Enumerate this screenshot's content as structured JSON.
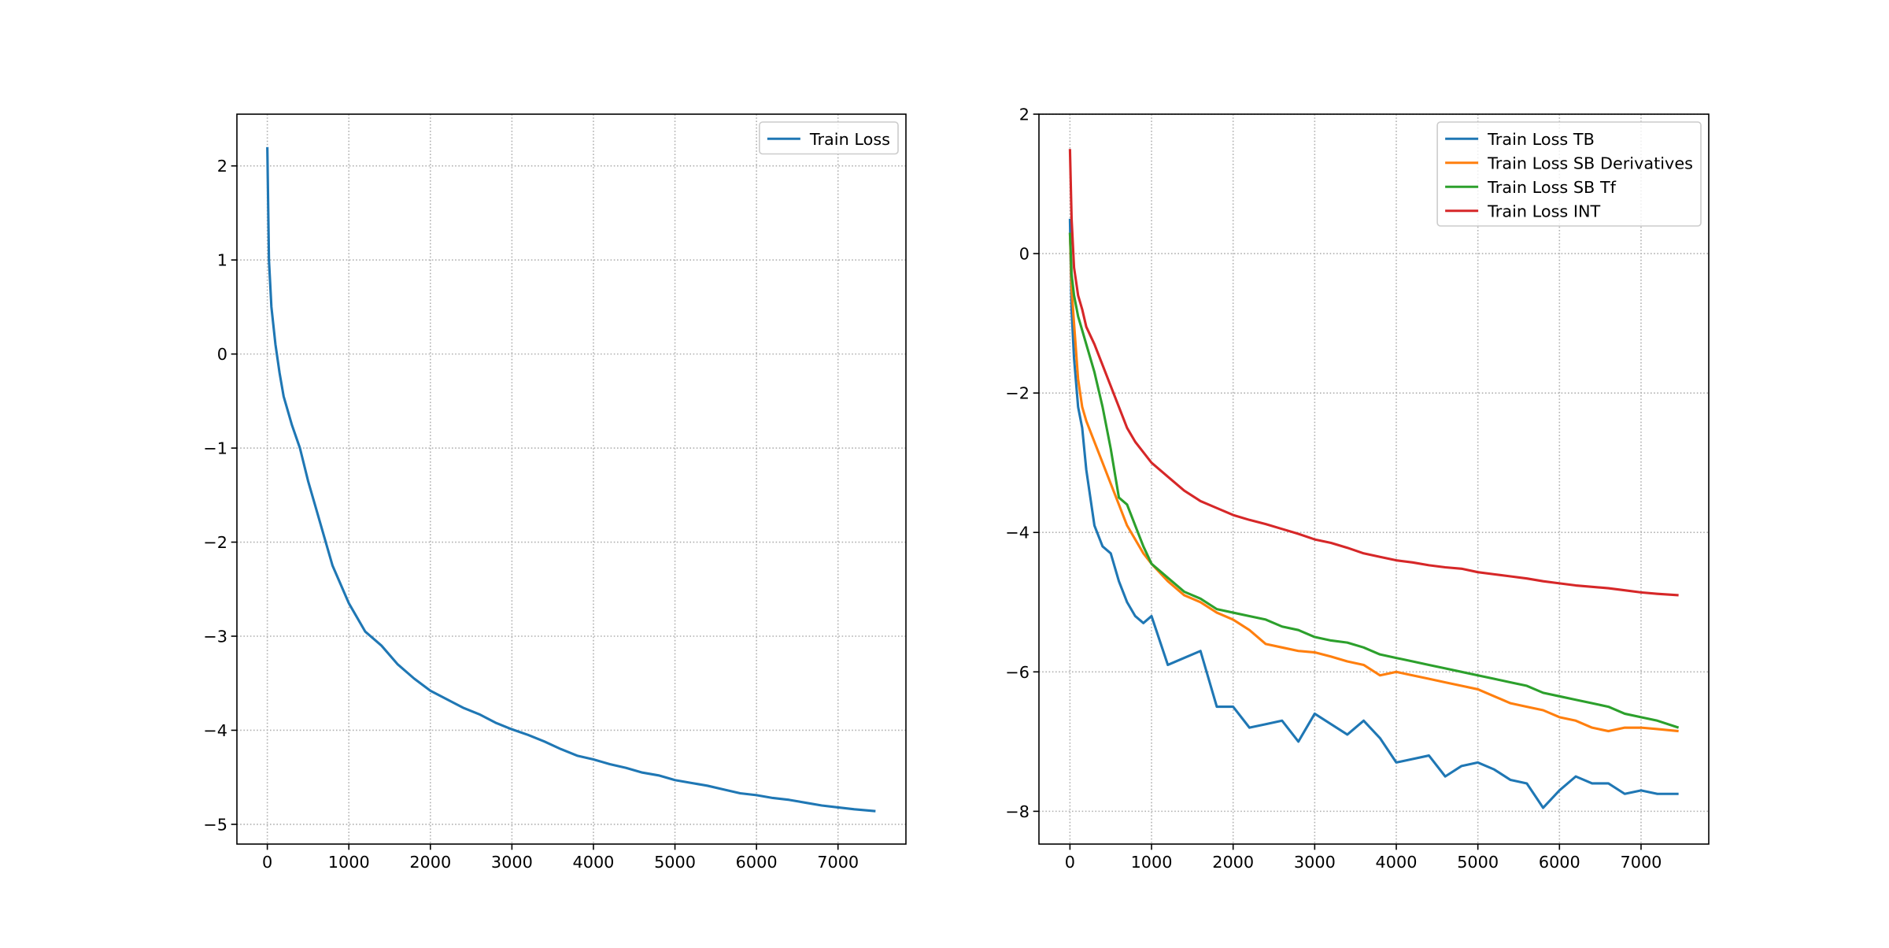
{
  "chart_data": [
    {
      "type": "line",
      "x": [
        0,
        20,
        50,
        100,
        150,
        200,
        300,
        400,
        500,
        600,
        700,
        800,
        900,
        1000,
        1200,
        1400,
        1600,
        1800,
        2000,
        2200,
        2400,
        2600,
        2800,
        3000,
        3200,
        3400,
        3600,
        3800,
        4000,
        4200,
        4400,
        4600,
        4800,
        5000,
        5200,
        5400,
        5600,
        5800,
        6000,
        6200,
        6400,
        6600,
        6800,
        7000,
        7200,
        7460
      ],
      "series": [
        {
          "name": "Train Loss",
          "color": "#1f77b4",
          "values": [
            2.2,
            1.0,
            0.5,
            0.1,
            -0.2,
            -0.45,
            -0.75,
            -1.0,
            -1.35,
            -1.65,
            -1.95,
            -2.25,
            -2.45,
            -2.65,
            -2.95,
            -3.1,
            -3.3,
            -3.45,
            -3.58,
            -3.67,
            -3.76,
            -3.83,
            -3.92,
            -3.99,
            -4.05,
            -4.12,
            -4.2,
            -4.27,
            -4.31,
            -4.36,
            -4.4,
            -4.45,
            -4.48,
            -4.53,
            -4.56,
            -4.59,
            -4.63,
            -4.67,
            -4.69,
            -4.72,
            -4.74,
            -4.77,
            -4.8,
            -4.82,
            -4.84,
            -4.86
          ]
        }
      ],
      "xlim": [
        -373,
        7833
      ],
      "ylim": [
        -5.21,
        2.55
      ],
      "xticks": [
        0,
        1000,
        2000,
        3000,
        4000,
        5000,
        6000,
        7000
      ],
      "yticks": [
        {
          "value": -5,
          "label": "−5"
        },
        {
          "value": -4,
          "label": "−4"
        },
        {
          "value": -3,
          "label": "−3"
        },
        {
          "value": -2,
          "label": "−2"
        },
        {
          "value": -1,
          "label": "−1"
        },
        0,
        1,
        2
      ],
      "grid": true,
      "legend": "upper right"
    },
    {
      "type": "line",
      "x": [
        0,
        20,
        50,
        100,
        150,
        200,
        300,
        400,
        500,
        600,
        700,
        800,
        900,
        1000,
        1200,
        1400,
        1600,
        1800,
        2000,
        2200,
        2400,
        2600,
        2800,
        3000,
        3200,
        3400,
        3600,
        3800,
        4000,
        4200,
        4400,
        4600,
        4800,
        5000,
        5200,
        5400,
        5600,
        5800,
        6000,
        6200,
        6400,
        6600,
        6800,
        7000,
        7200,
        7460
      ],
      "series": [
        {
          "name": "Train Loss TB",
          "color": "#1f77b4",
          "values": [
            0.5,
            -0.8,
            -1.5,
            -2.2,
            -2.5,
            -3.1,
            -3.9,
            -4.2,
            -4.3,
            -4.7,
            -5.0,
            -5.2,
            -5.3,
            -5.2,
            -5.9,
            -5.8,
            -5.7,
            -6.5,
            -6.5,
            -6.8,
            -6.75,
            -6.7,
            -7.0,
            -6.6,
            -6.75,
            -6.9,
            -6.7,
            -6.95,
            -7.3,
            -7.25,
            -7.2,
            -7.5,
            -7.35,
            -7.3,
            -7.4,
            -7.55,
            -7.6,
            -7.95,
            -7.7,
            -7.5,
            -7.6,
            -7.6,
            -7.75,
            -7.7,
            -7.75,
            -7.75
          ]
        },
        {
          "name": "Train Loss SB Derivatives",
          "color": "#ff7f0e",
          "values": [
            0.3,
            -0.5,
            -1.0,
            -1.8,
            -2.2,
            -2.4,
            -2.7,
            -3.0,
            -3.3,
            -3.6,
            -3.9,
            -4.1,
            -4.3,
            -4.45,
            -4.7,
            -4.9,
            -5.0,
            -5.15,
            -5.25,
            -5.4,
            -5.6,
            -5.65,
            -5.7,
            -5.72,
            -5.78,
            -5.85,
            -5.9,
            -6.05,
            -6.0,
            -6.05,
            -6.1,
            -6.15,
            -6.2,
            -6.25,
            -6.35,
            -6.45,
            -6.5,
            -6.55,
            -6.65,
            -6.7,
            -6.8,
            -6.85,
            -6.8,
            -6.8,
            -6.82,
            -6.85
          ]
        },
        {
          "name": "Train Loss SB Tf",
          "color": "#2ca02c",
          "values": [
            0.3,
            -0.3,
            -0.6,
            -0.9,
            -1.1,
            -1.3,
            -1.7,
            -2.2,
            -2.8,
            -3.5,
            -3.6,
            -3.9,
            -4.2,
            -4.45,
            -4.65,
            -4.85,
            -4.95,
            -5.1,
            -5.15,
            -5.2,
            -5.25,
            -5.35,
            -5.4,
            -5.5,
            -5.55,
            -5.58,
            -5.65,
            -5.75,
            -5.8,
            -5.85,
            -5.9,
            -5.95,
            -6.0,
            -6.05,
            -6.1,
            -6.15,
            -6.2,
            -6.3,
            -6.35,
            -6.4,
            -6.45,
            -6.5,
            -6.6,
            -6.65,
            -6.7,
            -6.8
          ]
        },
        {
          "name": "Train Loss INT",
          "color": "#d62728",
          "values": [
            1.5,
            0.5,
            -0.2,
            -0.6,
            -0.8,
            -1.05,
            -1.3,
            -1.6,
            -1.9,
            -2.2,
            -2.5,
            -2.7,
            -2.85,
            -3.0,
            -3.2,
            -3.4,
            -3.55,
            -3.65,
            -3.75,
            -3.82,
            -3.88,
            -3.95,
            -4.02,
            -4.1,
            -4.15,
            -4.22,
            -4.3,
            -4.35,
            -4.4,
            -4.43,
            -4.47,
            -4.5,
            -4.52,
            -4.57,
            -4.6,
            -4.63,
            -4.66,
            -4.7,
            -4.73,
            -4.76,
            -4.78,
            -4.8,
            -4.83,
            -4.86,
            -4.88,
            -4.9
          ]
        }
      ],
      "xlim": [
        -380,
        7830
      ],
      "ylim": [
        -8.47,
        2.0
      ],
      "xticks": [
        0,
        1000,
        2000,
        3000,
        4000,
        5000,
        6000,
        7000
      ],
      "yticks": [
        {
          "value": -8,
          "label": "−8"
        },
        {
          "value": -6,
          "label": "−6"
        },
        {
          "value": -4,
          "label": "−4"
        },
        {
          "value": -2,
          "label": "−2"
        },
        0,
        2
      ],
      "grid": true,
      "legend": "upper right"
    }
  ]
}
